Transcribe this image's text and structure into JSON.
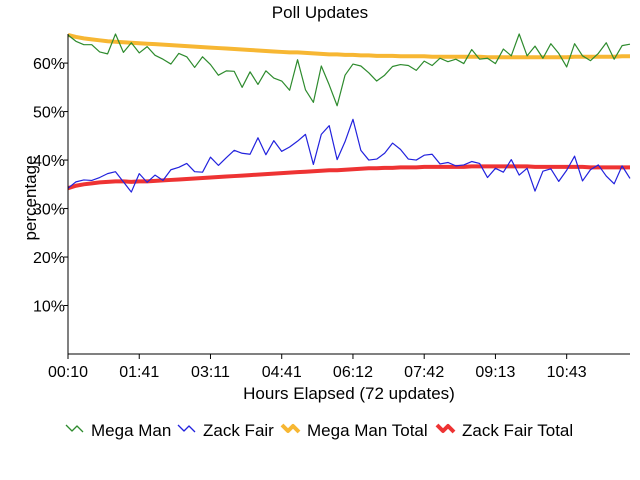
{
  "chart_data": {
    "type": "line",
    "title": "Poll Updates",
    "xlabel": "Hours Elapsed (72 updates)",
    "ylabel": "percentage",
    "x_tick_labels": [
      "00:10",
      "01:41",
      "03:11",
      "04:41",
      "06:12",
      "07:42",
      "09:13",
      "10:43"
    ],
    "y_tick_labels": [
      "10%",
      "20%",
      "30%",
      "40%",
      "50%",
      "60%"
    ],
    "y_ticks": [
      10,
      20,
      30,
      40,
      50,
      60
    ],
    "ylim": [
      0,
      66
    ],
    "grid": false,
    "legend_position": "bottom",
    "series": [
      {
        "name": "Mega Man",
        "color": "#2e8b2e",
        "values": [
          65.8,
          64.5,
          63.8,
          63.8,
          62.3,
          61.9,
          66.0,
          62.2,
          64.2,
          62.1,
          63.4,
          61.6,
          60.8,
          59.8,
          62.0,
          61.3,
          59.1,
          61.3,
          59.7,
          57.5,
          58.4,
          58.3,
          55.0,
          58.2,
          55.6,
          58.4,
          56.9,
          56.3,
          54.4,
          60.7,
          54.5,
          51.9,
          59.4,
          55.5,
          51.2,
          57.5,
          59.8,
          59.4,
          58.0,
          56.3,
          57.5,
          59.3,
          59.7,
          59.5,
          58.5,
          60.4,
          59.5,
          61.0,
          60.3,
          60.8,
          59.9,
          62.8,
          60.8,
          61.0,
          59.9,
          62.9,
          61.5,
          66.0,
          61.5,
          63.5,
          61.0,
          64.0,
          62.0,
          59.2,
          64.0,
          61.5,
          60.5,
          62.0,
          64.2,
          60.8,
          63.6,
          63.9
        ]
      },
      {
        "name": "Zack Fair",
        "color": "#2222dd",
        "values": [
          34.2,
          35.5,
          35.9,
          35.8,
          36.4,
          37.2,
          37.6,
          35.5,
          33.4,
          37.2,
          35.4,
          36.9,
          35.8,
          38.0,
          38.5,
          39.3,
          37.6,
          37.5,
          40.6,
          38.9,
          40.5,
          42.0,
          41.4,
          41.2,
          44.6,
          41.1,
          44.0,
          41.8,
          42.7,
          43.9,
          45.3,
          39.1,
          45.3,
          47.1,
          40.1,
          43.8,
          48.4,
          42.0,
          40.0,
          40.2,
          41.4,
          43.5,
          42.2,
          40.2,
          40.0,
          41.0,
          41.2,
          39.2,
          39.5,
          38.8,
          39.0,
          39.7,
          39.3,
          36.4,
          38.3,
          37.5,
          40.1,
          36.9,
          38.3,
          33.6,
          37.7,
          38.2,
          35.6,
          37.9,
          40.8,
          35.7,
          38.0,
          39.0,
          36.7,
          35.1,
          38.8,
          36.2
        ]
      },
      {
        "name": "Mega Man Total",
        "color": "#f7b733",
        "values": [
          65.8,
          65.4,
          65.1,
          64.9,
          64.7,
          64.5,
          64.4,
          64.3,
          64.2,
          64.1,
          64.0,
          63.9,
          63.8,
          63.7,
          63.6,
          63.5,
          63.4,
          63.3,
          63.2,
          63.1,
          63.0,
          62.9,
          62.8,
          62.7,
          62.6,
          62.5,
          62.4,
          62.3,
          62.2,
          62.2,
          62.1,
          62.0,
          61.9,
          61.8,
          61.8,
          61.7,
          61.7,
          61.6,
          61.6,
          61.5,
          61.5,
          61.5,
          61.4,
          61.4,
          61.4,
          61.4,
          61.3,
          61.3,
          61.3,
          61.3,
          61.3,
          61.3,
          61.3,
          61.2,
          61.2,
          61.2,
          61.2,
          61.2,
          61.2,
          61.2,
          61.2,
          61.2,
          61.2,
          61.2,
          61.3,
          61.3,
          61.3,
          61.3,
          61.3,
          61.3,
          61.4,
          61.4
        ]
      },
      {
        "name": "Zack Fair Total",
        "color": "#ee3333",
        "values": [
          34.2,
          34.7,
          35.0,
          35.2,
          35.4,
          35.5,
          35.6,
          35.6,
          35.5,
          35.6,
          35.6,
          35.7,
          35.8,
          35.9,
          36.0,
          36.1,
          36.2,
          36.3,
          36.4,
          36.5,
          36.6,
          36.7,
          36.8,
          36.9,
          37.0,
          37.1,
          37.2,
          37.3,
          37.4,
          37.5,
          37.6,
          37.7,
          37.8,
          37.9,
          37.9,
          38.0,
          38.1,
          38.2,
          38.3,
          38.3,
          38.4,
          38.4,
          38.5,
          38.5,
          38.5,
          38.6,
          38.6,
          38.6,
          38.6,
          38.6,
          38.6,
          38.7,
          38.7,
          38.7,
          38.7,
          38.7,
          38.7,
          38.7,
          38.7,
          38.6,
          38.6,
          38.6,
          38.6,
          38.6,
          38.6,
          38.6,
          38.5,
          38.5,
          38.5,
          38.5,
          38.5,
          38.5
        ]
      }
    ]
  }
}
